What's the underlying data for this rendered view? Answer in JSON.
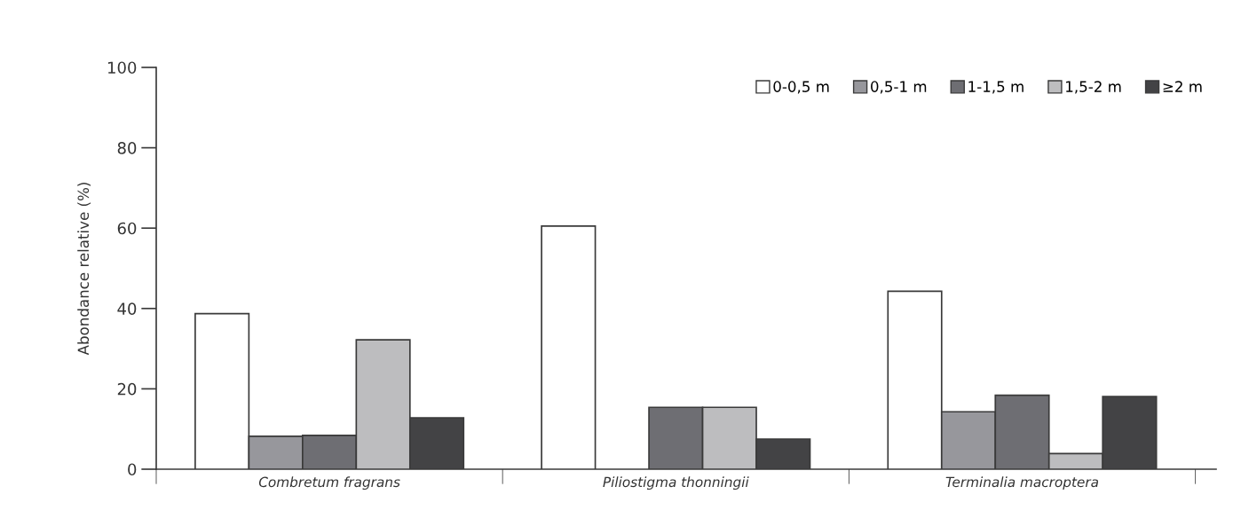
{
  "chart_data": {
    "type": "bar",
    "ylabel": "Abondance relative (%)",
    "categories": [
      "Combretum fragrans",
      "Piliostigma thonningii",
      "Terminalia macroptera"
    ],
    "series": [
      {
        "name": "0-0,5 m",
        "color": "#ffffff",
        "values": [
          38.7,
          60.5,
          44.3
        ]
      },
      {
        "name": "0,5-1 m",
        "color": "#97979c",
        "values": [
          8.2,
          null,
          14.3
        ]
      },
      {
        "name": "1-1,5 m",
        "color": "#6e6e73",
        "values": [
          8.4,
          15.4,
          18.4
        ]
      },
      {
        "name": "1,5-2 m",
        "color": "#bdbdbf",
        "values": [
          32.2,
          15.4,
          3.9
        ]
      },
      {
        "name": "≥2 m",
        "color": "#434345",
        "values": [
          12.8,
          7.5,
          18.1
        ]
      }
    ],
    "ylim": [
      0,
      100
    ],
    "yticks": [
      0,
      20,
      40,
      60,
      80,
      100
    ],
    "grid": false,
    "legend": "top right"
  }
}
